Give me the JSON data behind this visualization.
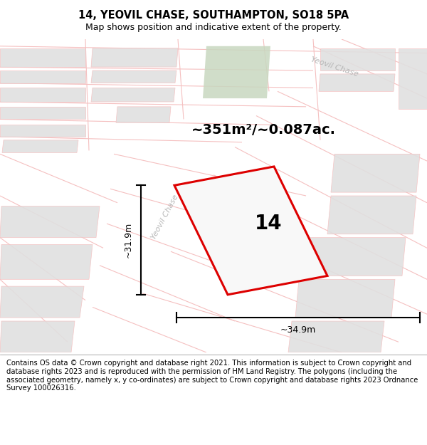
{
  "title": "14, YEOVIL CHASE, SOUTHAMPTON, SO18 5PA",
  "subtitle": "Map shows position and indicative extent of the property.",
  "area_label": "~351m²/~0.087ac.",
  "plot_number": "14",
  "width_label": "~34.9m",
  "height_label": "~31.9m",
  "footer_text": "Contains OS data © Crown copyright and database right 2021. This information is subject to Crown copyright and database rights 2023 and is reproduced with the permission of HM Land Registry. The polygons (including the associated geometry, namely x, y co-ordinates) are subject to Crown copyright and database rights 2023 Ordnance Survey 100026316.",
  "bg_color": "#ffffff",
  "map_bg": "#ffffff",
  "plot_color_red": "#dd0000",
  "road_color": "#f5c0c0",
  "block_color": "#e0e0e0",
  "green_color": "#c8d8c0",
  "title_fontsize": 10.5,
  "subtitle_fontsize": 9,
  "footer_fontsize": 7.2,
  "area_fontsize": 14,
  "number_fontsize": 20,
  "dim_fontsize": 9,
  "street_color": "#b0b0b0",
  "street_fontsize": 8
}
